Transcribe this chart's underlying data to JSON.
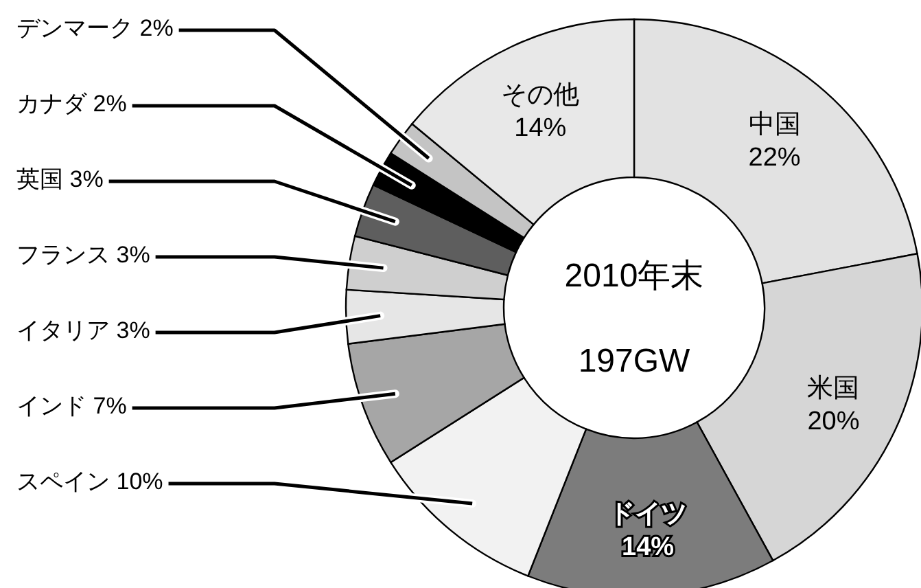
{
  "chart_data": {
    "type": "donut",
    "categories": [
      "中国",
      "米国",
      "ドイツ",
      "スペイン",
      "インド",
      "イタリア",
      "フランス",
      "英国",
      "カナダ",
      "デンマーク",
      "その他"
    ],
    "values": [
      22,
      20,
      14,
      10,
      7,
      3,
      3,
      3,
      2,
      2,
      14
    ],
    "colors": [
      "#e2e2e2",
      "#d6d6d6",
      "#7c7c7c",
      "#f2f2f2",
      "#a6a6a6",
      "#e6e6e6",
      "#cfcfcf",
      "#5e5e5e",
      "#000000",
      "#c4c4c4",
      "#e8e8e8"
    ],
    "value_labels": [
      "22%",
      "20%",
      "14%",
      "10%",
      "7%",
      "3%",
      "3%",
      "3%",
      "2%",
      "2%",
      "14%"
    ],
    "annotations": [
      "2010年末",
      "197GW"
    ]
  }
}
